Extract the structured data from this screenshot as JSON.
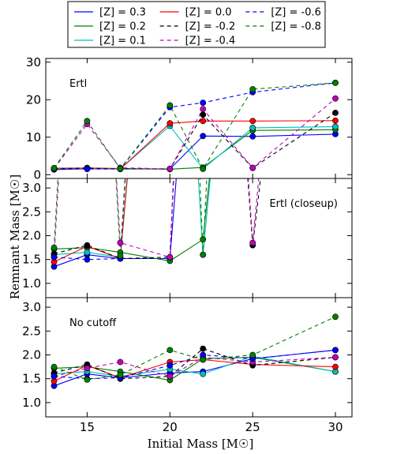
{
  "chart_data": {
    "type": "line",
    "x": [
      13,
      15,
      17,
      20,
      22,
      25,
      30
    ],
    "xlabel": "Initial Mass [M☉]",
    "ylabel": "Remnant Mass [M☉]",
    "xlim": [
      12.5,
      31
    ],
    "x_ticks": [
      15,
      20,
      25,
      30
    ],
    "legend_position": "top, outside plot, 3 columns",
    "legend_columns": 3,
    "series": [
      {
        "name": "[Z] = 0.3",
        "color": "#0000ff",
        "dash": "solid",
        "point_color": "#0000ff"
      },
      {
        "name": "[Z] = 0.2",
        "color": "#007f00",
        "dash": "solid",
        "point_color": "#007f00"
      },
      {
        "name": "[Z] = 0.1",
        "color": "#00bfbf",
        "dash": "solid",
        "point_color": "#00bfbf"
      },
      {
        "name": "[Z] = 0.0",
        "color": "#ff0000",
        "dash": "solid",
        "point_color": "#ff0000"
      },
      {
        "name": "[Z] = -0.2",
        "color": "#000000",
        "dash": "dashed",
        "point_color": "#000000"
      },
      {
        "name": "[Z] = -0.4",
        "color": "#bf00bf",
        "dash": "dashed",
        "point_color": "#bf00bf"
      },
      {
        "name": "[Z] = -0.6",
        "color": "#0000ff",
        "dash": "dashed",
        "point_color": "#0000ff"
      },
      {
        "name": "[Z] = -0.8",
        "color": "#007f00",
        "dash": "dashed",
        "point_color": "#007f00"
      }
    ],
    "panels": [
      {
        "label": "Ertl",
        "ylim": [
          -1,
          31
        ],
        "y_ticks": [
          0,
          10,
          20,
          30
        ],
        "label_position": "top-left",
        "values": [
          [
            1.35,
            1.6,
            1.52,
            1.52,
            10.3,
            10.2,
            10.8
          ],
          [
            1.72,
            1.75,
            1.65,
            1.47,
            1.92,
            11.8,
            12.0
          ],
          [
            1.6,
            1.65,
            1.55,
            13.0,
            1.6,
            12.5,
            12.8
          ],
          [
            1.45,
            1.78,
            1.52,
            13.7,
            14.3,
            14.3,
            14.4
          ],
          [
            1.62,
            1.8,
            1.52,
            1.55,
            16.0,
            1.8,
            16.5
          ],
          [
            1.55,
            13.5,
            1.85,
            1.55,
            17.5,
            1.85,
            20.3
          ],
          [
            1.55,
            1.5,
            1.52,
            18.0,
            19.2,
            22.0,
            24.5
          ],
          [
            1.75,
            14.3,
            1.58,
            18.5,
            1.6,
            22.8,
            24.5
          ]
        ]
      },
      {
        "label": "Ertl (closeup)",
        "ylim": [
          0.7,
          3.2
        ],
        "y_ticks": [
          1.0,
          1.5,
          2.0,
          2.5,
          3.0
        ],
        "label_position": "top-right",
        "values": [
          [
            1.35,
            1.6,
            1.52,
            1.52,
            10.3,
            10.2,
            10.8
          ],
          [
            1.72,
            1.75,
            1.65,
            1.47,
            1.92,
            11.8,
            12.0
          ],
          [
            1.6,
            1.65,
            1.55,
            13.0,
            1.6,
            12.5,
            12.8
          ],
          [
            1.45,
            1.78,
            1.52,
            13.7,
            14.3,
            14.3,
            14.4
          ],
          [
            1.62,
            1.8,
            1.52,
            1.55,
            16.0,
            1.8,
            16.5
          ],
          [
            1.55,
            13.5,
            1.85,
            1.55,
            17.5,
            1.85,
            20.3
          ],
          [
            1.55,
            1.5,
            1.52,
            18.0,
            19.2,
            22.0,
            24.5
          ],
          [
            1.75,
            14.3,
            1.58,
            18.5,
            1.6,
            22.8,
            24.5
          ]
        ]
      },
      {
        "label": "No cutoff",
        "ylim": [
          0.7,
          3.2
        ],
        "y_ticks": [
          1.0,
          1.5,
          2.0,
          2.5,
          3.0
        ],
        "label_position": "top-left",
        "values": [
          [
            1.35,
            1.6,
            1.52,
            1.62,
            1.65,
            1.92,
            2.1
          ],
          [
            1.72,
            1.75,
            1.65,
            1.47,
            1.92,
            1.95,
            1.65
          ],
          [
            1.6,
            1.65,
            1.55,
            1.7,
            1.6,
            1.97,
            1.65
          ],
          [
            1.45,
            1.78,
            1.52,
            1.85,
            1.9,
            1.8,
            1.75
          ],
          [
            1.62,
            1.8,
            1.5,
            1.55,
            2.13,
            1.78,
            1.95
          ],
          [
            1.55,
            1.72,
            1.85,
            1.55,
            1.95,
            1.85,
            1.95
          ],
          [
            1.55,
            1.5,
            1.52,
            1.78,
            2.0,
            1.92,
            2.1
          ],
          [
            1.75,
            1.48,
            1.58,
            2.1,
            1.9,
            2.0,
            2.8
          ]
        ]
      }
    ]
  }
}
